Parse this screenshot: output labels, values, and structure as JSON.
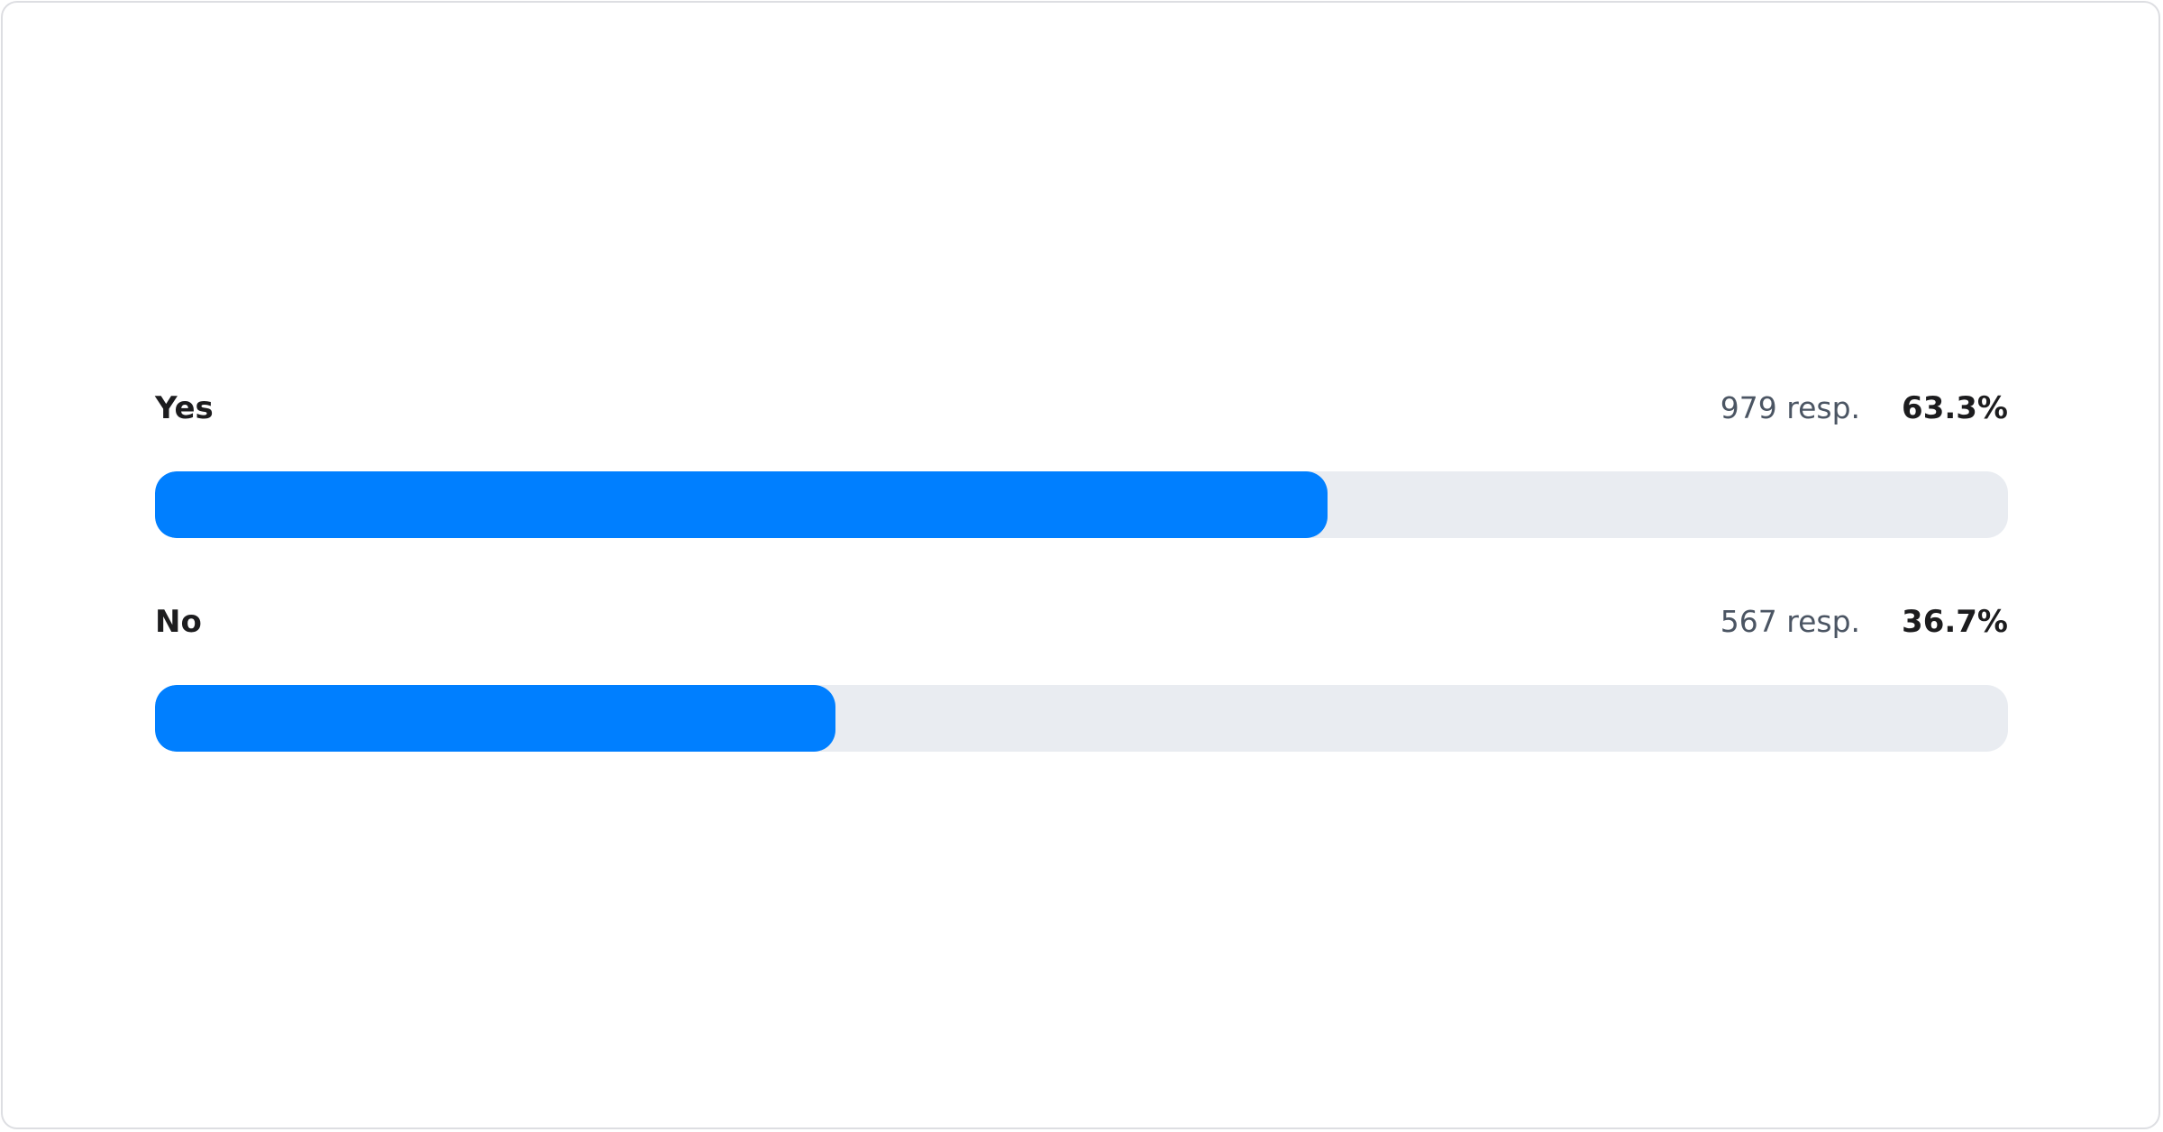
{
  "chart_data": {
    "type": "bar",
    "orientation": "horizontal",
    "categories": [
      "Yes",
      "No"
    ],
    "series": [
      {
        "values": [
          979,
          567
        ]
      }
    ],
    "rows": [
      {
        "label": "Yes",
        "count": "979 resp.",
        "percent_label": "63.3%",
        "percent": 63.3
      },
      {
        "label": "No",
        "count": "567 resp.",
        "percent_label": "36.7%",
        "percent": 36.7
      }
    ],
    "colors": {
      "fill": "#007fff",
      "track": "#e9ecf1"
    }
  }
}
